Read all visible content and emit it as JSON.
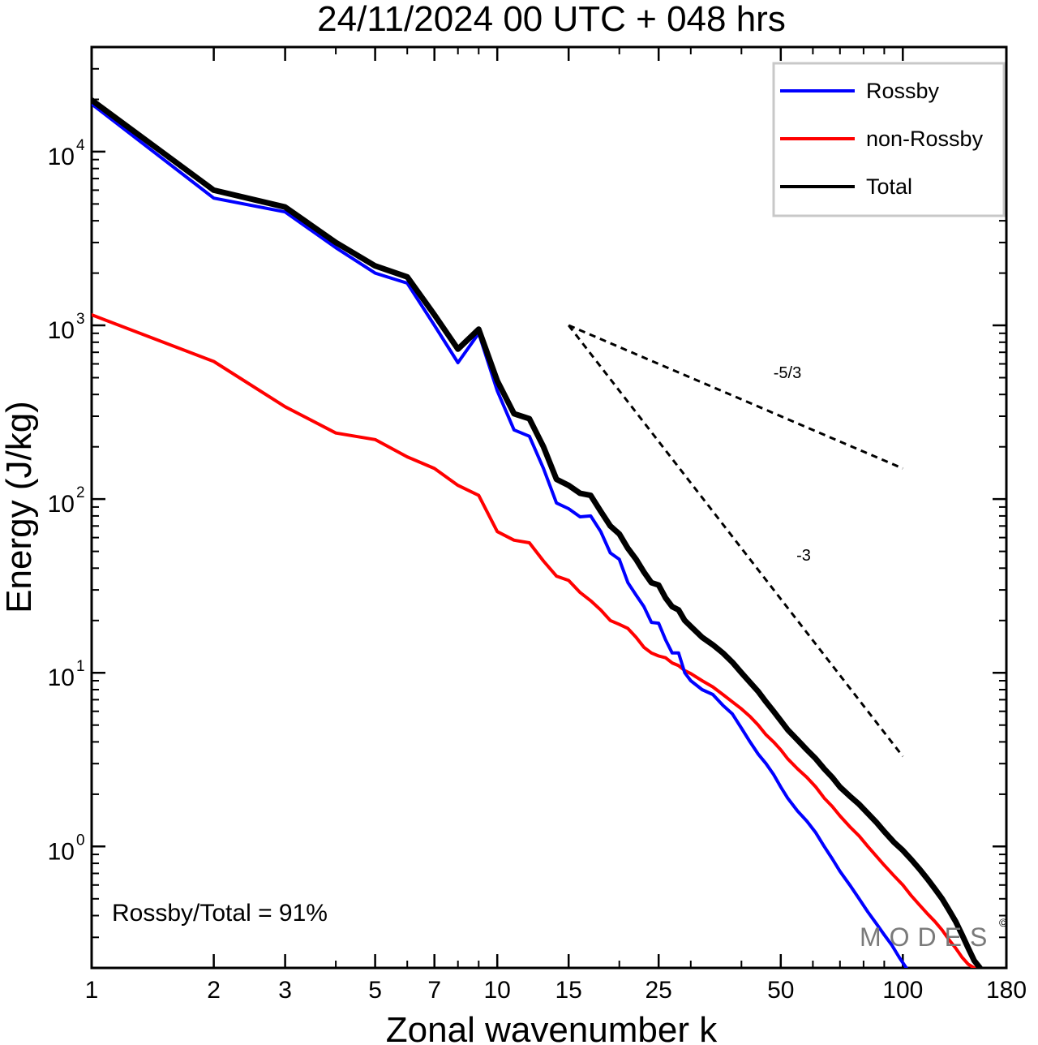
{
  "chart_data": {
    "type": "line",
    "title": "24/11/2024  00 UTC  + 048 hrs",
    "xlabel": "Zonal wavenumber k",
    "ylabel": "Energy (J/kg)",
    "x_scale": "log",
    "y_scale": "log",
    "xlim": [
      1,
      180
    ],
    "ylim": [
      0.2,
      40000
    ],
    "x_ticks": [
      {
        "value": 1,
        "label": "1"
      },
      {
        "value": 2,
        "label": "2"
      },
      {
        "value": 3,
        "label": "3"
      },
      {
        "value": 5,
        "label": "5"
      },
      {
        "value": 7,
        "label": "7"
      },
      {
        "value": 10,
        "label": "10"
      },
      {
        "value": 15,
        "label": "15"
      },
      {
        "value": 25,
        "label": "25"
      },
      {
        "value": 50,
        "label": "50"
      },
      {
        "value": 100,
        "label": "100"
      },
      {
        "value": 180,
        "label": "180"
      }
    ],
    "y_ticks": [
      {
        "value": 1,
        "mantissa": "10",
        "exponent": "0"
      },
      {
        "value": 10,
        "mantissa": "10",
        "exponent": "1"
      },
      {
        "value": 100,
        "mantissa": "10",
        "exponent": "2"
      },
      {
        "value": 1000,
        "mantissa": "10",
        "exponent": "3"
      },
      {
        "value": 10000,
        "mantissa": "10",
        "exponent": "4"
      }
    ],
    "legend_position": "top-right",
    "series": [
      {
        "name": "Rossby",
        "color": "#0000ff",
        "points": [
          [
            1,
            18800
          ],
          [
            2,
            5400
          ],
          [
            3,
            4500
          ],
          [
            4,
            2800
          ],
          [
            5,
            2000
          ],
          [
            6,
            1750
          ],
          [
            7,
            1000
          ],
          [
            8,
            610
          ],
          [
            9,
            900
          ],
          [
            10,
            420
          ],
          [
            11,
            250
          ],
          [
            12,
            230
          ],
          [
            13,
            150
          ],
          [
            14,
            95
          ],
          [
            15,
            88
          ],
          [
            16,
            79
          ],
          [
            17,
            80
          ],
          [
            18,
            65
          ],
          [
            19,
            49
          ],
          [
            20,
            45
          ],
          [
            21,
            33
          ],
          [
            22,
            28
          ],
          [
            23,
            24
          ],
          [
            24,
            19.5
          ],
          [
            25,
            19.3
          ],
          [
            26,
            15.5
          ],
          [
            27,
            13.0
          ],
          [
            28,
            13.0
          ],
          [
            29,
            10.0
          ],
          [
            30,
            9.0
          ],
          [
            32,
            8.0
          ],
          [
            34,
            7.5
          ],
          [
            36,
            6.5
          ],
          [
            38,
            5.8
          ],
          [
            40,
            4.8
          ],
          [
            42,
            4.0
          ],
          [
            44,
            3.4
          ],
          [
            46,
            3.0
          ],
          [
            48,
            2.6
          ],
          [
            50,
            2.2
          ],
          [
            52,
            1.9
          ],
          [
            55,
            1.6
          ],
          [
            58,
            1.4
          ],
          [
            61,
            1.2
          ],
          [
            64,
            1.0
          ],
          [
            67,
            0.85
          ],
          [
            70,
            0.72
          ],
          [
            74,
            0.6
          ],
          [
            78,
            0.5
          ],
          [
            82,
            0.42
          ],
          [
            86,
            0.36
          ],
          [
            90,
            0.31
          ],
          [
            94,
            0.27
          ],
          [
            98,
            0.23
          ],
          [
            102,
            0.2
          ]
        ]
      },
      {
        "name": "non-Rossby",
        "color": "#ff0000",
        "points": [
          [
            1,
            1150
          ],
          [
            2,
            620
          ],
          [
            3,
            340
          ],
          [
            4,
            240
          ],
          [
            5,
            220
          ],
          [
            6,
            175
          ],
          [
            7,
            150
          ],
          [
            8,
            120
          ],
          [
            9,
            105
          ],
          [
            10,
            65
          ],
          [
            11,
            58
          ],
          [
            12,
            56
          ],
          [
            13,
            44
          ],
          [
            14,
            36
          ],
          [
            15,
            34
          ],
          [
            16,
            29
          ],
          [
            17,
            26
          ],
          [
            18,
            23
          ],
          [
            19,
            20
          ],
          [
            20,
            19
          ],
          [
            21,
            18
          ],
          [
            22,
            16
          ],
          [
            23,
            14
          ],
          [
            24,
            13
          ],
          [
            25,
            12.5
          ],
          [
            26,
            12.2
          ],
          [
            27,
            11.4
          ],
          [
            28,
            11.0
          ],
          [
            29,
            10.3
          ],
          [
            30,
            9.9
          ],
          [
            32,
            9.0
          ],
          [
            34,
            8.3
          ],
          [
            36,
            7.5
          ],
          [
            38,
            6.8
          ],
          [
            40,
            6.2
          ],
          [
            42,
            5.6
          ],
          [
            44,
            5.0
          ],
          [
            46,
            4.4
          ],
          [
            48,
            4.0
          ],
          [
            50,
            3.6
          ],
          [
            52,
            3.2
          ],
          [
            55,
            2.8
          ],
          [
            58,
            2.5
          ],
          [
            61,
            2.2
          ],
          [
            64,
            1.9
          ],
          [
            67,
            1.7
          ],
          [
            70,
            1.5
          ],
          [
            74,
            1.3
          ],
          [
            78,
            1.15
          ],
          [
            82,
            1.0
          ],
          [
            86,
            0.88
          ],
          [
            90,
            0.78
          ],
          [
            95,
            0.68
          ],
          [
            100,
            0.6
          ],
          [
            105,
            0.52
          ],
          [
            110,
            0.46
          ],
          [
            115,
            0.41
          ],
          [
            120,
            0.37
          ],
          [
            125,
            0.33
          ],
          [
            130,
            0.29
          ],
          [
            135,
            0.26
          ],
          [
            140,
            0.23
          ],
          [
            145,
            0.21
          ],
          [
            150,
            0.2
          ]
        ]
      },
      {
        "name": "Total",
        "color": "#000000",
        "points": [
          [
            1,
            19800
          ],
          [
            2,
            6000
          ],
          [
            3,
            4800
          ],
          [
            4,
            3000
          ],
          [
            5,
            2200
          ],
          [
            6,
            1900
          ],
          [
            7,
            1150
          ],
          [
            8,
            730
          ],
          [
            9,
            950
          ],
          [
            10,
            480
          ],
          [
            11,
            310
          ],
          [
            12,
            290
          ],
          [
            13,
            200
          ],
          [
            14,
            130
          ],
          [
            15,
            120
          ],
          [
            16,
            108
          ],
          [
            17,
            105
          ],
          [
            18,
            85
          ],
          [
            19,
            70
          ],
          [
            20,
            63
          ],
          [
            21,
            52
          ],
          [
            22,
            45
          ],
          [
            23,
            38
          ],
          [
            24,
            33
          ],
          [
            25,
            32
          ],
          [
            26,
            27
          ],
          [
            27,
            24
          ],
          [
            28,
            23
          ],
          [
            29,
            20
          ],
          [
            30,
            18.5
          ],
          [
            32,
            16
          ],
          [
            34,
            14.5
          ],
          [
            36,
            13
          ],
          [
            38,
            11.5
          ],
          [
            40,
            10
          ],
          [
            42,
            8.8
          ],
          [
            44,
            7.8
          ],
          [
            46,
            6.8
          ],
          [
            48,
            6.0
          ],
          [
            50,
            5.3
          ],
          [
            52,
            4.7
          ],
          [
            55,
            4.1
          ],
          [
            58,
            3.6
          ],
          [
            61,
            3.2
          ],
          [
            64,
            2.8
          ],
          [
            67,
            2.5
          ],
          [
            70,
            2.2
          ],
          [
            74,
            1.95
          ],
          [
            78,
            1.75
          ],
          [
            82,
            1.55
          ],
          [
            86,
            1.38
          ],
          [
            90,
            1.22
          ],
          [
            95,
            1.06
          ],
          [
            100,
            0.95
          ],
          [
            105,
            0.84
          ],
          [
            110,
            0.74
          ],
          [
            115,
            0.65
          ],
          [
            120,
            0.57
          ],
          [
            125,
            0.5
          ],
          [
            130,
            0.43
          ],
          [
            135,
            0.37
          ],
          [
            140,
            0.31
          ],
          [
            145,
            0.26
          ],
          [
            150,
            0.22
          ],
          [
            155,
            0.2
          ]
        ]
      }
    ],
    "reference_lines": [
      {
        "label": "-5/3",
        "points": [
          [
            15,
            1000
          ],
          [
            100,
            150
          ]
        ],
        "style": "dashed"
      },
      {
        "label": "-3",
        "points": [
          [
            15,
            1000
          ],
          [
            100,
            3.3
          ]
        ],
        "style": "dashed"
      }
    ],
    "annotation": "Rossby/Total = 91%",
    "watermark": "MODES",
    "watermark_symbol": "©"
  }
}
